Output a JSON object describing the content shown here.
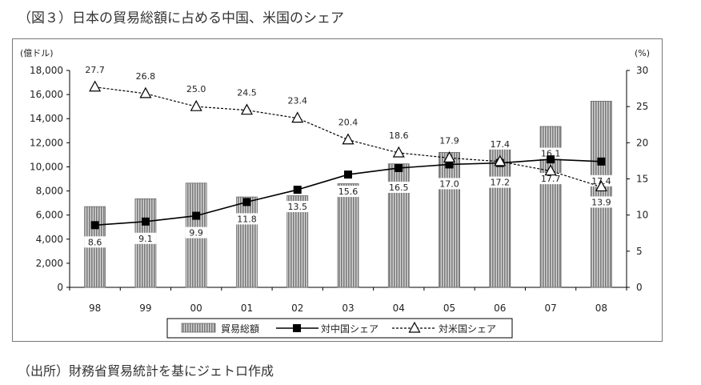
{
  "title": "（図３）日本の貿易総額に占める中国、米国のシェア",
  "source": "（出所）財務省貿易統計を基にジェトロ作成",
  "chart_data": {
    "type": "bar",
    "categories": [
      "98",
      "99",
      "00",
      "01",
      "02",
      "03",
      "04",
      "05",
      "06",
      "07",
      "08"
    ],
    "left_axis": {
      "unit": "(億ドル)",
      "ylim": [
        0,
        18000
      ],
      "ticks": [
        "0",
        "2,000",
        "4,000",
        "6,000",
        "8,000",
        "10,000",
        "12,000",
        "14,000",
        "16,000",
        "18,000"
      ]
    },
    "right_axis": {
      "unit": "(%)",
      "ylim": [
        0,
        30
      ],
      "ticks": [
        "0",
        "5",
        "10",
        "15",
        "20",
        "25",
        "30"
      ]
    },
    "series": [
      {
        "name": "貿易総額",
        "kind": "bar",
        "axis": "left",
        "color": "#9a9a9a",
        "values": [
          6700,
          7350,
          8650,
          7500,
          7600,
          8600,
          10250,
          11200,
          12300,
          13350,
          15450
        ]
      },
      {
        "name": "対中国シェア",
        "kind": "line",
        "axis": "right",
        "marker": "filled-square",
        "color": "#000000",
        "values": [
          8.6,
          9.1,
          9.9,
          11.8,
          13.5,
          15.6,
          16.5,
          17.0,
          17.2,
          17.7,
          17.4
        ],
        "labels": [
          "8.6",
          "9.1",
          "9.9",
          "11.8",
          "13.5",
          "15.6",
          "16.5",
          "17.0",
          "17.2",
          "17.7",
          "17.4"
        ]
      },
      {
        "name": "対米国シェア",
        "kind": "line",
        "axis": "right",
        "marker": "open-triangle",
        "dash": true,
        "color": "#000000",
        "values": [
          27.7,
          26.8,
          25.0,
          24.5,
          23.4,
          20.4,
          18.6,
          17.9,
          17.4,
          16.1,
          13.9
        ],
        "labels": [
          "27.7",
          "26.8",
          "25.0",
          "24.5",
          "23.4",
          "20.4",
          "18.6",
          "17.9",
          "17.4",
          "16.1",
          "13.9"
        ]
      }
    ],
    "legend": {
      "placement": "bottom-center",
      "entries": [
        "貿易総額",
        "対中国シェア",
        "対米国シェア"
      ]
    },
    "grid": false
  }
}
